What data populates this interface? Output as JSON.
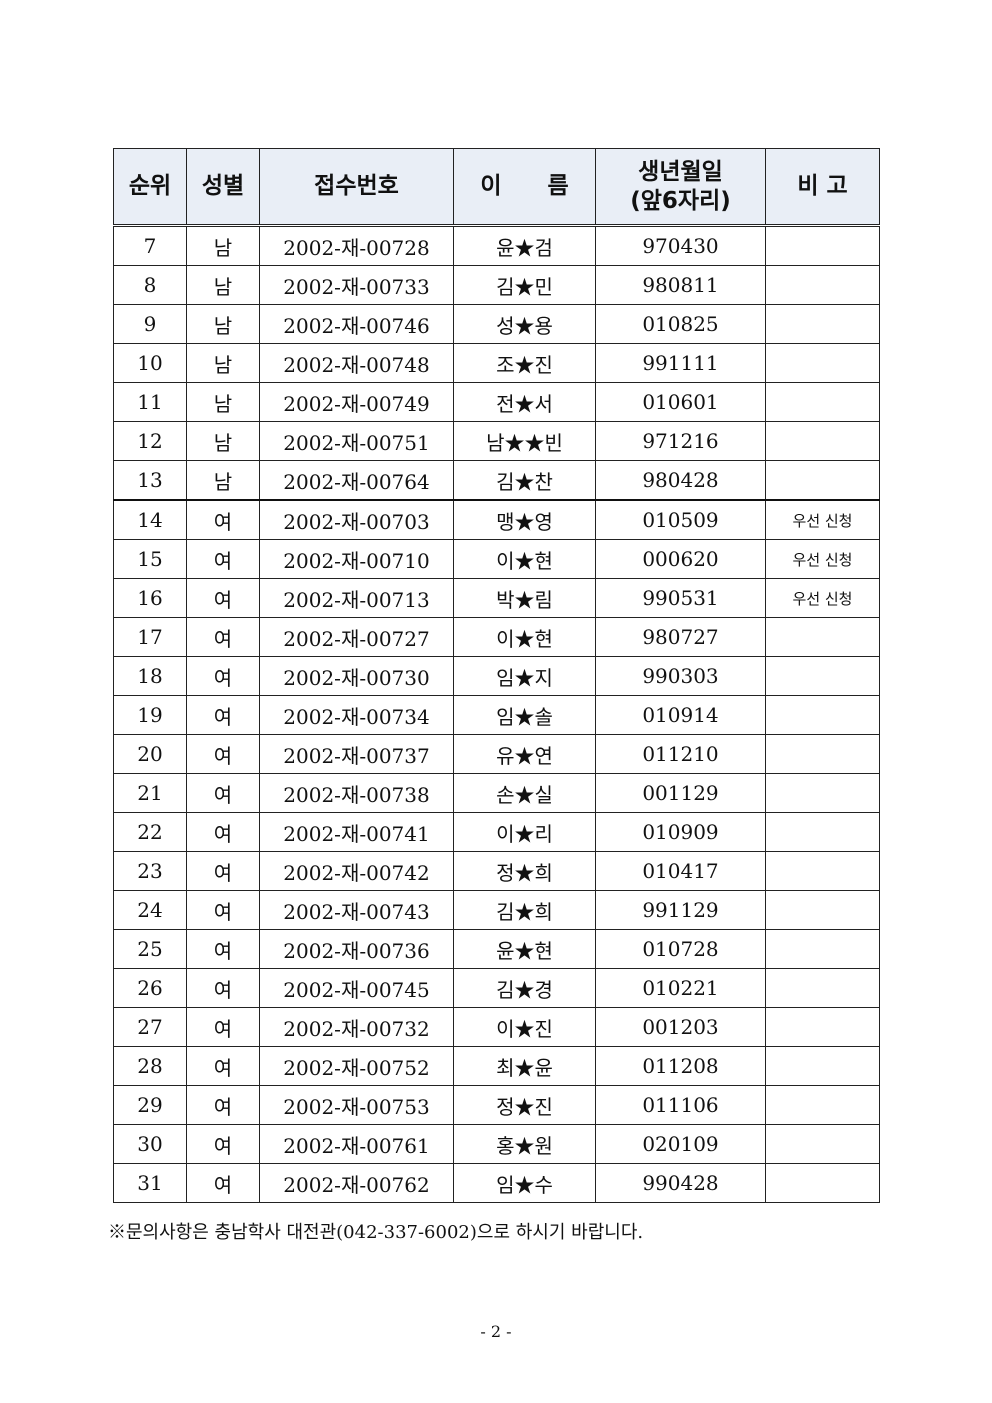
{
  "table": {
    "headers": [
      "순위",
      "성별",
      "접수번호",
      "이　　름",
      "생년월일\n(앞6자리)",
      "비 고"
    ],
    "rows": [
      [
        "7",
        "남",
        "2002-재-00728",
        "윤★검",
        "970430",
        ""
      ],
      [
        "8",
        "남",
        "2002-재-00733",
        "김★민",
        "980811",
        ""
      ],
      [
        "9",
        "남",
        "2002-재-00746",
        "성★용",
        "010825",
        ""
      ],
      [
        "10",
        "남",
        "2002-재-00748",
        "조★진",
        "991111",
        ""
      ],
      [
        "11",
        "남",
        "2002-재-00749",
        "전★서",
        "010601",
        ""
      ],
      [
        "12",
        "남",
        "2002-재-00751",
        "남★★빈",
        "971216",
        ""
      ],
      [
        "13",
        "남",
        "2002-재-00764",
        "김★찬",
        "980428",
        ""
      ],
      [
        "14",
        "여",
        "2002-재-00703",
        "맹★영",
        "010509",
        "우선 신청"
      ],
      [
        "15",
        "여",
        "2002-재-00710",
        "이★현",
        "000620",
        "우선 신청"
      ],
      [
        "16",
        "여",
        "2002-재-00713",
        "박★림",
        "990531",
        "우선 신청"
      ],
      [
        "17",
        "여",
        "2002-재-00727",
        "이★현",
        "980727",
        ""
      ],
      [
        "18",
        "여",
        "2002-재-00730",
        "임★지",
        "990303",
        ""
      ],
      [
        "19",
        "여",
        "2002-재-00734",
        "임★솔",
        "010914",
        ""
      ],
      [
        "20",
        "여",
        "2002-재-00737",
        "유★연",
        "011210",
        ""
      ],
      [
        "21",
        "여",
        "2002-재-00738",
        "손★실",
        "001129",
        ""
      ],
      [
        "22",
        "여",
        "2002-재-00741",
        "이★리",
        "010909",
        ""
      ],
      [
        "23",
        "여",
        "2002-재-00742",
        "정★희",
        "010417",
        ""
      ],
      [
        "24",
        "여",
        "2002-재-00743",
        "김★희",
        "991129",
        ""
      ],
      [
        "25",
        "여",
        "2002-재-00736",
        "윤★현",
        "010728",
        ""
      ],
      [
        "26",
        "여",
        "2002-재-00745",
        "김★경",
        "010221",
        ""
      ],
      [
        "27",
        "여",
        "2002-재-00732",
        "이★진",
        "001203",
        ""
      ],
      [
        "28",
        "여",
        "2002-재-00752",
        "최★윤",
        "011208",
        ""
      ],
      [
        "29",
        "여",
        "2002-재-00753",
        "정★진",
        "011106",
        ""
      ],
      [
        "30",
        "여",
        "2002-재-00761",
        "홍★원",
        "020109",
        ""
      ],
      [
        "31",
        "여",
        "2002-재-00762",
        "임★수",
        "990428",
        ""
      ]
    ]
  },
  "footnote": "※문의사항은 충남학사 대전관(042-337-6002)으로 하시기 바랍니다.",
  "page_number": "- 2 -",
  "colors": {
    "header_bg": "#e9eef6"
  }
}
